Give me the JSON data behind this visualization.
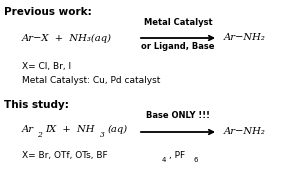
{
  "bg_color": "#ffffff",
  "title_prev": "Previous work:",
  "title_study": "This study:",
  "prev_reactants": "Ar−X  +  NH₃(aq)",
  "prev_arrow_top": "Metal Catalyst",
  "prev_arrow_bot": "or Ligand, Base",
  "prev_product": "Ar−NH₂",
  "prev_note1": "X= Cl, Br, I",
  "prev_note2": "Metal Catalyst: Cu, Pd catalyst",
  "study_reactants_a": "Ar",
  "study_reactants_b": "2",
  "study_reactants_c": "IX  +  NH",
  "study_reactants_d": "3",
  "study_reactants_e": "(aq)",
  "study_arrow_top": "Base ONLY !!!",
  "study_product": "Ar−NH₂",
  "study_note_a": "X= Br, OTf, OTs, BF",
  "study_note_b": "4",
  "study_note_c": ", PF",
  "study_note_d": "6",
  "arrow_color": "#000000",
  "text_color": "#000000",
  "figw": 2.89,
  "figh": 1.89,
  "dpi": 100
}
